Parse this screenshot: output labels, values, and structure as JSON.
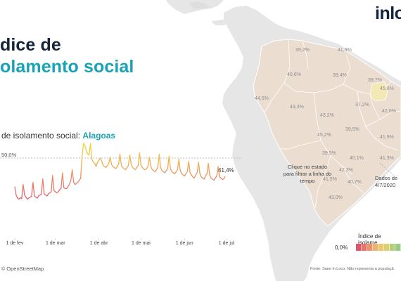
{
  "header": {
    "title_line1": "dice de",
    "title_line2": "olamento social",
    "logo_text": "inlo"
  },
  "map": {
    "state_labels": [
      "39,2%",
      "41,9%",
      "40,6%",
      "39,4%",
      "39,7%",
      "44,5%",
      "45,6%",
      "43,3%",
      "37,2%",
      "43,2%",
      "42,0%",
      "39,5%",
      "41,9%",
      "45,2%",
      "39,5%",
      "40,1%",
      "41,3%",
      "42,3%",
      "41,5%",
      "40,7%",
      "43,0%"
    ],
    "hint_text": "Clique no estado para filtrar a linha do tempo",
    "dados_label": "Dados de",
    "dados_date": "4/7/2020",
    "attribution": "OpenStreetMap",
    "attribution_symbol": "©",
    "source_text": "Fonte: Saee in Loco. Não representa a populaçã",
    "colors": {
      "land": "#e6e6e6",
      "ocean": "#ffffff",
      "state_fill": "#ecddd1",
      "state_border": "#ffffff",
      "highlight": "#f3e9b6"
    }
  },
  "legend": {
    "title": "Índice de isolame",
    "min_label": "0,0%",
    "colors": [
      "#dc566e",
      "#e6746a",
      "#ec936d",
      "#efb26f",
      "#ecc76e",
      "#d9d06e",
      "#b7d077",
      "#9bcb87"
    ]
  },
  "chart": {
    "title_prefix": "de isolamento social:",
    "region": "Alagoas",
    "reference_label": "50,0%",
    "last_value_label": "41,4%",
    "colors": {
      "low": "#d94a6a",
      "mid": "#f0a856",
      "high": "#f1d13f",
      "reference": "#aaaaaa"
    }
  },
  "chart_data": {
    "type": "line",
    "title": "Índice de isolamento social: Alagoas",
    "x_axis": "date",
    "x_tick_labels": [
      "1 de fev",
      "1 de mar",
      "1 de abr",
      "1 de mai",
      "1 de jun",
      "1 de jul"
    ],
    "x_range": [
      "2020-01-24",
      "2020-07-10"
    ],
    "y_range": [
      25,
      55
    ],
    "reference_line": 50.0,
    "x_start": "2020-02-01",
    "x_end": "2020-07-04",
    "values": [
      36.5,
      32.5,
      31.0,
      30.5,
      31.2,
      30.8,
      37.5,
      32.5,
      31.5,
      30.5,
      31.0,
      31.5,
      31.8,
      38.5,
      32.0,
      31.5,
      31.0,
      32.0,
      32.5,
      32.8,
      40.2,
      33.0,
      32.5,
      32.0,
      33.0,
      33.5,
      34.0,
      41.8,
      34.5,
      34.0,
      33.5,
      34.0,
      35.0,
      35.5,
      43.0,
      36.0,
      35.5,
      35.5,
      36.5,
      37.5,
      39.5,
      44.5,
      38.5,
      37.5,
      38.0,
      38.5,
      39.5,
      40.5,
      51.0,
      57.0,
      56.0,
      53.5,
      52.0,
      51.5,
      57.0,
      49.5,
      48.0,
      47.5,
      46.0,
      48.0,
      49.0,
      50.0,
      48.5,
      46.5,
      46.0,
      45.5,
      46.5,
      47.5,
      50.5,
      47.0,
      46.0,
      45.5,
      45.0,
      46.0,
      47.0,
      52.0,
      46.5,
      45.5,
      45.0,
      44.5,
      45.5,
      46.5,
      51.5,
      47.0,
      45.5,
      45.0,
      44.5,
      45.5,
      46.5,
      52.5,
      46.5,
      45.5,
      44.8,
      44.5,
      45.0,
      46.0,
      50.5,
      46.0,
      44.5,
      44.0,
      43.5,
      44.5,
      45.5,
      51.8,
      45.5,
      44.0,
      43.5,
      43.0,
      44.0,
      45.0,
      51.0,
      45.0,
      43.5,
      43.0,
      42.5,
      43.5,
      44.5,
      49.5,
      44.0,
      42.5,
      42.0,
      41.5,
      42.5,
      43.5,
      48.5,
      43.0,
      42.0,
      41.0,
      40.5,
      42.0,
      43.0,
      48.0,
      42.5,
      41.0,
      40.5,
      40.0,
      41.5,
      42.5,
      47.5,
      42.0,
      40.5,
      40.0,
      39.5,
      40.5,
      41.5,
      46.0,
      41.0,
      40.5,
      39.8,
      40.2,
      41.4
    ],
    "last_value": 41.4
  }
}
